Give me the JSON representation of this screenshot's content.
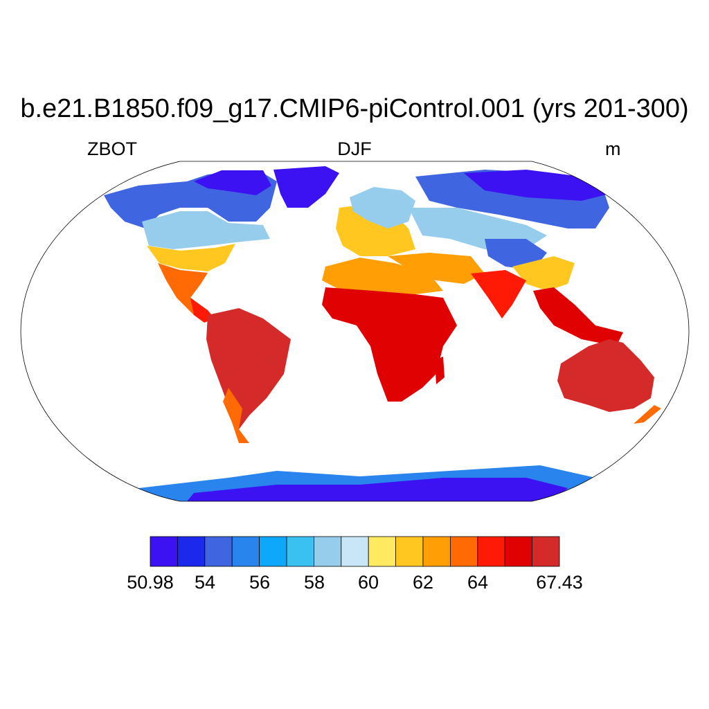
{
  "title": "b.e21.B1850.f09_g17.CMIP6-piControl.001 (yrs 201-300)",
  "subtitle_left": "ZBOT",
  "subtitle_center": "DJF",
  "subtitle_right": "m",
  "colorbar": {
    "colors": [
      "#3c12f2",
      "#1a29ec",
      "#3f66e0",
      "#2a84ee",
      "#0da8f9",
      "#3ac1f2",
      "#96cdec",
      "#c8e6f7",
      "#ffea62",
      "#ffc71f",
      "#ff9f05",
      "#ff6a05",
      "#ff1a05",
      "#e00202",
      "#d42a2a"
    ],
    "tick_labels": [
      "50.98",
      "54",
      "56",
      "58",
      "60",
      "62",
      "64",
      "67.43"
    ]
  },
  "map_legend_colors": {
    "cold": "#3c12f2",
    "cool": "#2a84ee",
    "mild": "#96cdec",
    "warm": "#ffc71f",
    "hot": "#ff6a05",
    "hottest": "#d42a2a"
  }
}
